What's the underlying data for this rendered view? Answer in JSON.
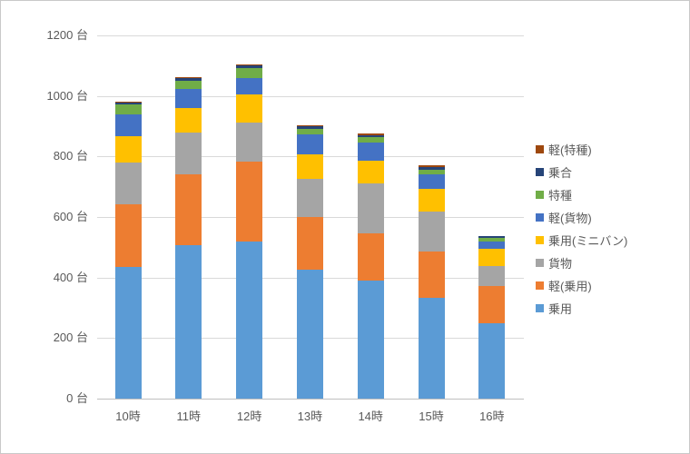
{
  "chart_data": {
    "type": "bar",
    "stacked": true,
    "title": "",
    "xlabel": "",
    "ylabel": "",
    "unit": "台",
    "ylim": [
      0,
      1200
    ],
    "ytick_step": 200,
    "ytick_suffix": " 台",
    "grid": true,
    "legend_position": "right",
    "legend_order": "reversed-of-stack",
    "categories": [
      "10時",
      "11時",
      "12時",
      "13時",
      "14時",
      "15時",
      "16時"
    ],
    "series": [
      {
        "name": "乗用",
        "color": "#5B9BD5",
        "values": [
          435,
          507,
          520,
          425,
          390,
          334,
          250
        ]
      },
      {
        "name": "軽(乗用)",
        "color": "#ED7D31",
        "values": [
          206,
          235,
          263,
          175,
          155,
          153,
          122
        ]
      },
      {
        "name": "貨物",
        "color": "#A5A5A5",
        "values": [
          140,
          137,
          130,
          125,
          165,
          130,
          66
        ]
      },
      {
        "name": "乗用(ミニバン)",
        "color": "#FFC000",
        "values": [
          85,
          80,
          92,
          82,
          75,
          77,
          58
        ]
      },
      {
        "name": "軽(貨物)",
        "color": "#4472C4",
        "values": [
          73,
          63,
          55,
          65,
          60,
          46,
          24
        ]
      },
      {
        "name": "特種",
        "color": "#70AD47",
        "values": [
          33,
          28,
          33,
          20,
          20,
          17,
          10
        ]
      },
      {
        "name": "乗合",
        "color": "#264478",
        "values": [
          5,
          8,
          7,
          8,
          6,
          8,
          6
        ]
      },
      {
        "name": "軽(特種)",
        "color": "#9E480E",
        "values": [
          4,
          5,
          5,
          2,
          6,
          5,
          2
        ]
      }
    ],
    "y_tick_labels": [
      "0 台",
      "200 台",
      "400 台",
      "600 台",
      "800 台",
      "1000 台",
      "1200 台"
    ]
  },
  "layout_colors": {
    "gridline": "#d9d9d9",
    "axis_line": "#bfbfbf",
    "tick_text": "#595959",
    "frame_border": "#c9c9c9",
    "background": "#ffffff"
  }
}
